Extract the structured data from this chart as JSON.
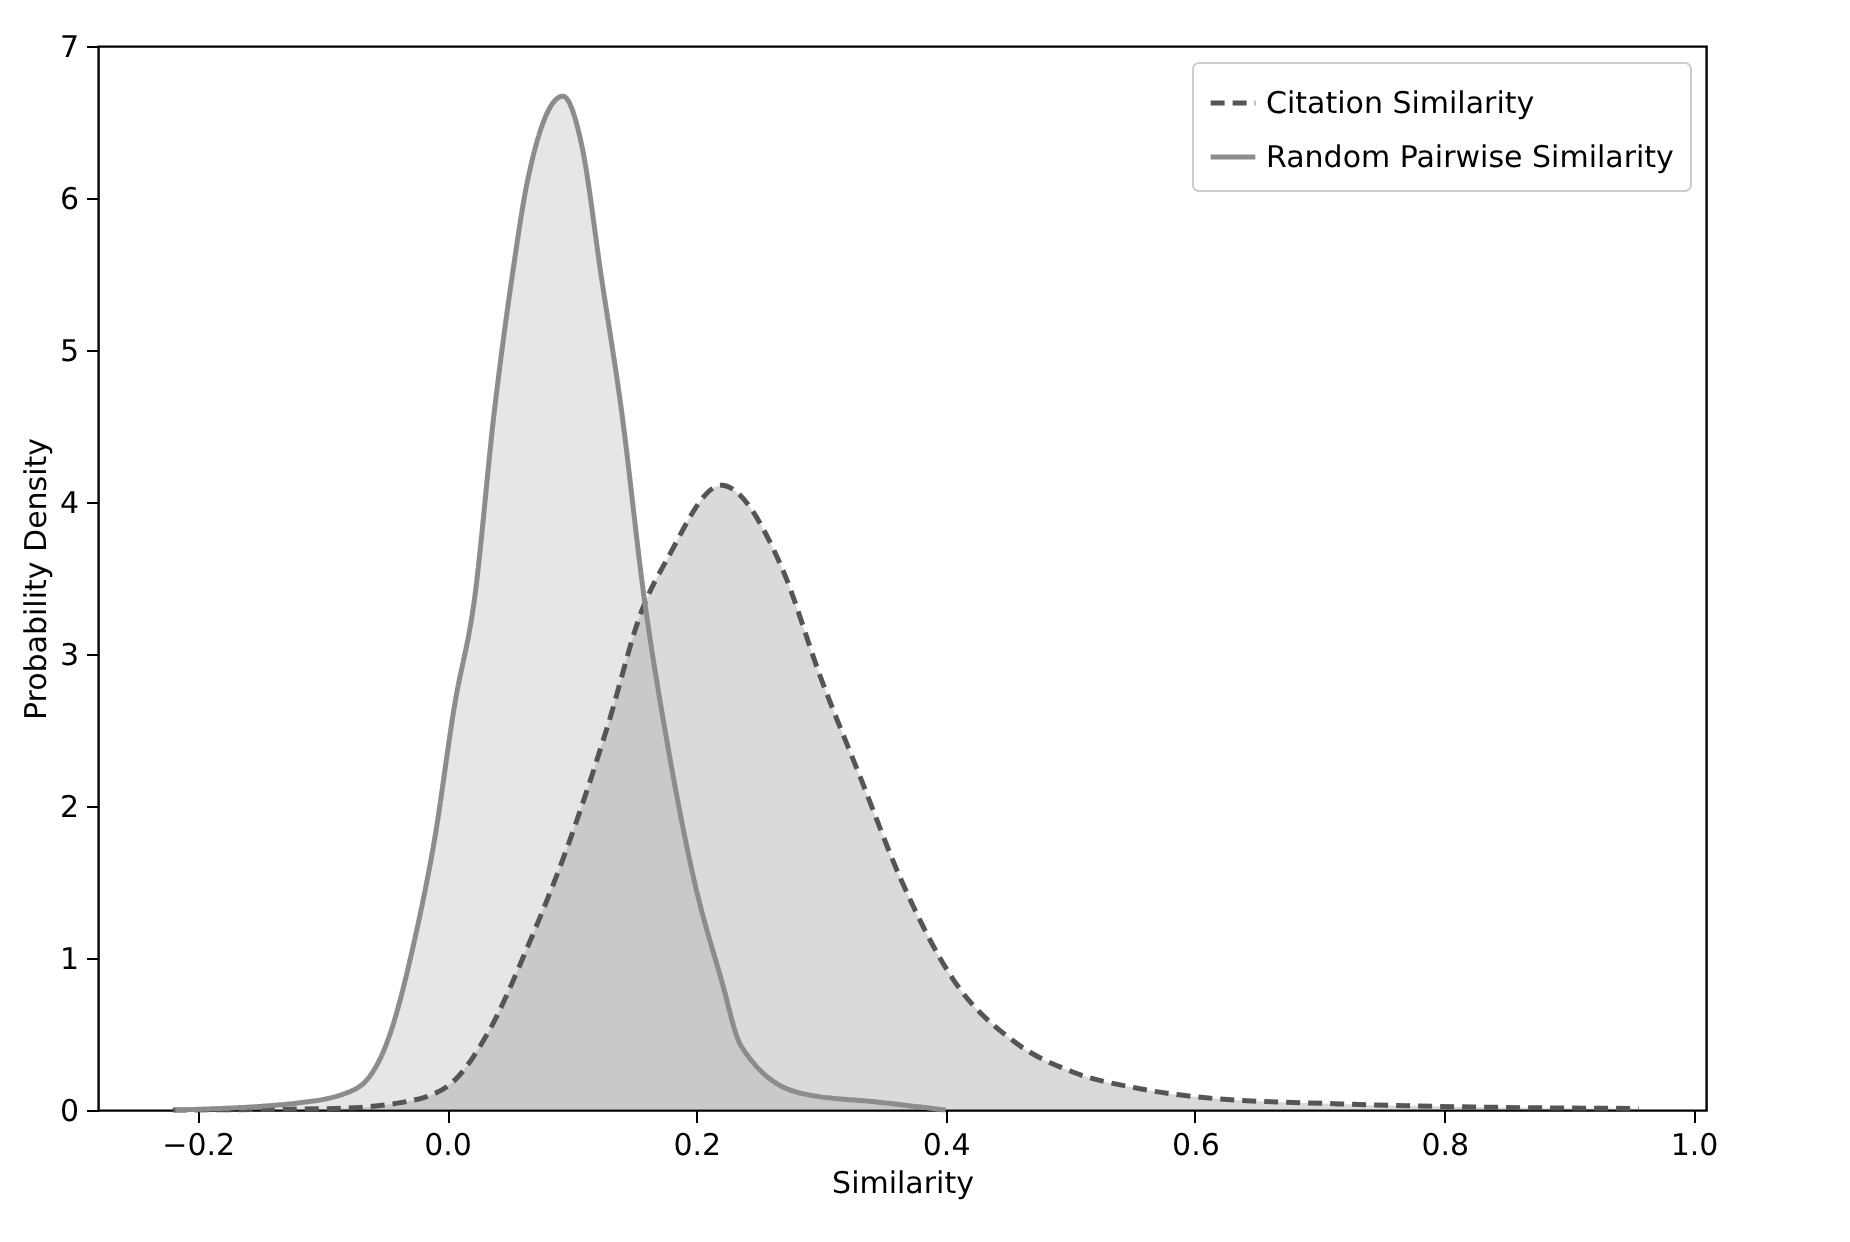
{
  "chart_data": {
    "type": "area",
    "xlabel": "Similarity",
    "ylabel": "Probability Density",
    "xlim": [
      -0.28,
      1.01
    ],
    "xticks": [
      -0.2,
      {
        "value": 0,
        "label": "0.0"
      },
      0.2,
      0.4,
      0.6,
      0.8,
      {
        "value": 1,
        "label": "1.0"
      }
    ],
    "ylim": [
      0,
      7
    ],
    "yticks": [
      0,
      1,
      2,
      3,
      4,
      5,
      6,
      7
    ],
    "grid": false,
    "legend": "top right",
    "marker": "none",
    "series": [
      {
        "name": "Citation Similarity",
        "color": "#555555",
        "line_style": "dashed",
        "x": [
          -0.22,
          -0.09,
          -0.036,
          0.001,
          0.033,
          0.065,
          0.097,
          0.129,
          0.156,
          0.177,
          0.22,
          0.268,
          0.3,
          0.332,
          0.364,
          0.406,
          0.455,
          0.502,
          0.556,
          0.609,
          0.716,
          0.822,
          0.956
        ],
        "values": [
          0.0,
          0.01,
          0.05,
          0.16,
          0.51,
          1.08,
          1.74,
          2.53,
          3.28,
          3.63,
          4.11,
          3.58,
          2.84,
          2.18,
          1.52,
          0.86,
          0.45,
          0.25,
          0.14,
          0.08,
          0.04,
          0.02,
          0.01
        ]
      },
      {
        "name": "Random Pairwise Similarity",
        "color": "#8c8c8c",
        "line_style": "solid",
        "x": [
          -0.218,
          -0.116,
          -0.073,
          -0.047,
          -0.026,
          -0.01,
          0.006,
          0.022,
          0.038,
          0.052,
          0.065,
          0.093,
          0.108,
          0.124,
          0.14,
          0.158,
          0.177,
          0.198,
          0.22,
          0.236,
          0.284,
          0.348,
          0.4
        ],
        "values": [
          0.0,
          0.05,
          0.14,
          0.47,
          1.12,
          1.78,
          2.66,
          3.36,
          4.6,
          5.47,
          6.13,
          6.67,
          6.35,
          5.47,
          4.6,
          3.38,
          2.4,
          1.52,
          0.86,
          0.42,
          0.11,
          0.05,
          0.0
        ]
      }
    ]
  }
}
